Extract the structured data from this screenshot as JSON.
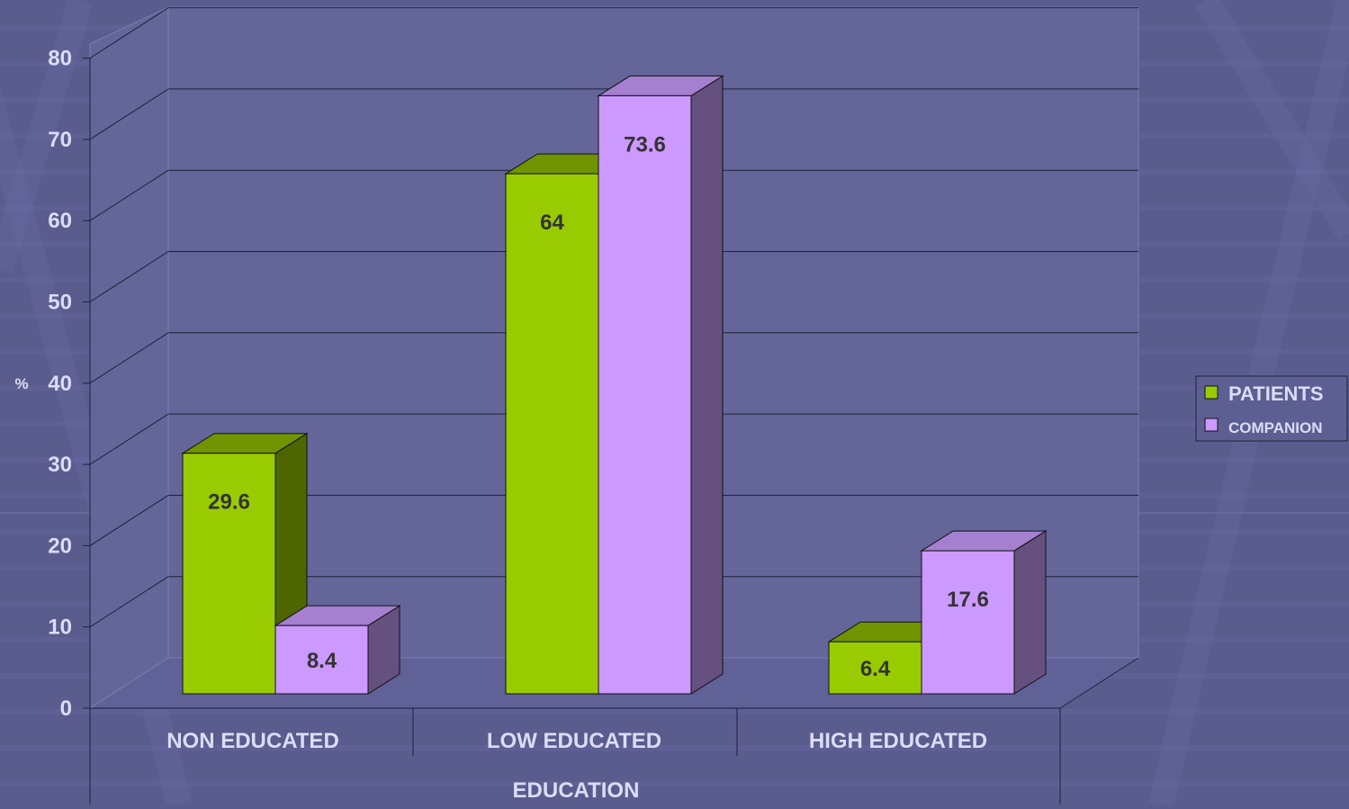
{
  "chart_data": {
    "type": "bar",
    "title": "",
    "xlabel": "EDUCATION",
    "ylabel": "%",
    "categories": [
      "NON EDUCATED",
      "LOW EDUCATED",
      "HIGH EDUCATED"
    ],
    "series": [
      {
        "name": "PATIENTS",
        "values": [
          29.6,
          64,
          6.4
        ],
        "color": "#99cc00",
        "top_color": "#6f9400",
        "side_color": "#4d6600"
      },
      {
        "name": "COMPANION",
        "values": [
          8.4,
          73.6,
          17.6
        ],
        "color": "#cc99ff",
        "top_color": "#a57fd0",
        "side_color": "#66507f"
      }
    ],
    "ylim": [
      0,
      80
    ],
    "yticks": [
      0,
      10,
      20,
      30,
      40,
      50,
      60,
      70,
      80
    ],
    "grid": true,
    "legend_position": "right",
    "data_labels": true,
    "colors": {
      "background": "#5a5c8e",
      "wall": "#64669a",
      "axis_text": "#dcdcf5",
      "data_label": "#333333",
      "grid": "#1f2038"
    }
  }
}
